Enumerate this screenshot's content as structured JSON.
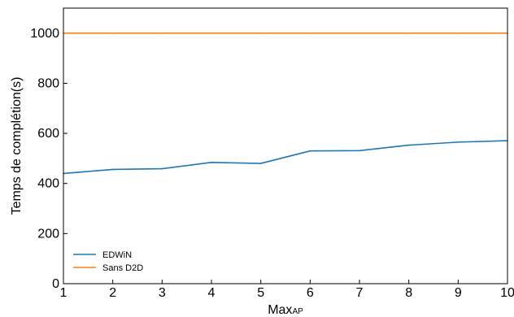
{
  "chart_data": {
    "type": "line",
    "x": [
      1,
      2,
      3,
      4,
      5,
      6,
      7,
      8,
      9,
      10
    ],
    "series": [
      {
        "name": "EDWiN",
        "color": "#1f77b4",
        "values": [
          440,
          456,
          459,
          484,
          480,
          530,
          531,
          553,
          565,
          571
        ]
      },
      {
        "name": "Sans D2D",
        "color": "#ff7f0e",
        "values": [
          1000,
          1000,
          1000,
          1000,
          1000,
          1000,
          1000,
          1000,
          1000,
          1000
        ]
      }
    ],
    "xlabel": "Max",
    "xlabel_subscript": "AP",
    "ylabel": "Temps de complétion(s)",
    "xlim": [
      1,
      10
    ],
    "ylim": [
      0,
      1100
    ],
    "xticks": [
      1,
      2,
      3,
      4,
      5,
      6,
      7,
      8,
      9,
      10
    ],
    "yticks": [
      0,
      200,
      400,
      600,
      800,
      1000
    ],
    "grid": false,
    "legend_position": "lower-left"
  }
}
